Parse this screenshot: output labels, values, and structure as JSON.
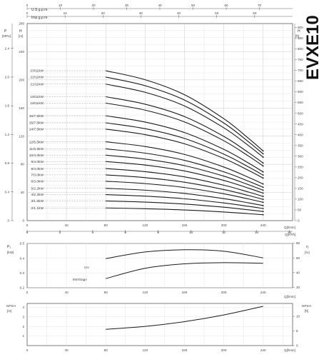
{
  "model": "EVXE10",
  "main_chart": {
    "top_axes": {
      "us_gpm": {
        "label": "U.S.g.p.m.",
        "ticks": [
          "0",
          "10",
          "20",
          "30",
          "40",
          "50",
          "60",
          "70"
        ],
        "max": 70
      },
      "imp_gpm": {
        "label": "Imp.g.p.m.",
        "ticks": [
          "0",
          "10",
          "20",
          "30",
          "40",
          "50",
          "60"
        ],
        "max": 60
      }
    },
    "left_axes": {
      "p_label": "P",
      "p_unit": "[MPa]",
      "p_ticks": [
        "0",
        "0.4",
        "0.8",
        "1.2",
        "1.6",
        "2.0",
        "2.4"
      ],
      "h_label": "H",
      "h_unit": "[m]",
      "h_ticks": [
        "0",
        "40",
        "80",
        "120",
        "160",
        "200",
        "240",
        "280"
      ]
    },
    "right_axis": {
      "label": "H",
      "unit": "[ft]",
      "ticks": [
        "0",
        "50",
        "100",
        "150",
        "200",
        "250",
        "300",
        "350",
        "400",
        "450",
        "500",
        "550",
        "600",
        "650",
        "700",
        "750",
        "800",
        "850",
        "900"
      ],
      "max": 900
    },
    "bottom_axes": {
      "q_lmin": {
        "label": "Q[l/min]",
        "ticks": [
          "0",
          "40",
          "80",
          "120",
          "160",
          "200",
          "240"
        ]
      },
      "q_m3h": {
        "label": "Q[m³/h]",
        "ticks": [
          "0",
          "2",
          "4",
          "6",
          "8",
          "10",
          "12",
          "14",
          "16"
        ]
      }
    }
  },
  "efficiency_chart": {
    "left_label": "P₂",
    "left_unit": "[kW]",
    "left_ticks": [
      "0.2",
      "0.3",
      "0.4",
      "0.5"
    ],
    "right_label": "η",
    "right_unit": "[%]",
    "right_ticks": [
      "20",
      "40",
      "60",
      "80"
    ],
    "bottom_ticks": [
      "0",
      "40",
      "80",
      "120",
      "160",
      "200",
      "240"
    ],
    "bottom_label": "Q[l/min]",
    "curve_labels": {
      "eta": "η%",
      "power": "kW/Stage"
    }
  },
  "npsh_chart": {
    "left_label": "NPSH",
    "left_unit": "[m]",
    "left_ticks": [
      "1",
      "2",
      "3",
      "4"
    ],
    "right_label": "NPSH",
    "right_unit": "[ft]",
    "right_ticks": [
      "0",
      "5",
      "10"
    ],
    "bottom_ticks": [
      "0",
      "40",
      "80",
      "120",
      "160",
      "200",
      "240"
    ],
    "bottom_label": "Q[l/min]"
  },
  "chart_data": [
    {
      "type": "line",
      "title": "EVXE10",
      "xlabel": "Q[l/min]",
      "ylabel": "H [m]",
      "xlim": [
        0,
        270
      ],
      "ylim": [
        0,
        280
      ],
      "x": [
        80,
        120,
        160,
        200,
        225,
        240
      ],
      "shape_relative_to_shutoff": [
        1.0,
        0.94,
        0.84,
        0.68,
        0.55,
        0.465
      ],
      "series": [
        {
          "name": "23/11kW",
          "head_at_80": 213
        },
        {
          "name": "22/11kW",
          "head_at_80": 204
        },
        {
          "name": "21/11kW",
          "head_at_80": 194
        },
        {
          "name": "19/11kW",
          "head_at_80": 176
        },
        {
          "name": "18/11kW",
          "head_at_80": 167
        },
        {
          "name": "16/7.5kW",
          "head_at_80": 149
        },
        {
          "name": "15/7.5kW",
          "head_at_80": 139
        },
        {
          "name": "14/7.5kW",
          "head_at_80": 130
        },
        {
          "name": "12/5.5kW",
          "head_at_80": 112
        },
        {
          "name": "11/5.5kW",
          "head_at_80": 102
        },
        {
          "name": "10/4.0kW",
          "head_at_80": 93
        },
        {
          "name": "9/4.0kW",
          "head_at_80": 84
        },
        {
          "name": "8/4.0kW",
          "head_at_80": 74
        },
        {
          "name": "7/3.0kW",
          "head_at_80": 65
        },
        {
          "name": "6/3.0kW",
          "head_at_80": 56
        },
        {
          "name": "5/2.2kW",
          "head_at_80": 46
        },
        {
          "name": "4/2.2kW",
          "head_at_80": 37
        },
        {
          "name": "3/1.5kW",
          "head_at_80": 28
        },
        {
          "name": "2/1.1kW",
          "head_at_80": 18
        }
      ]
    },
    {
      "type": "line",
      "xlabel": "Q[l/min]",
      "xlim": [
        0,
        270
      ],
      "series": [
        {
          "name": "η%",
          "axis": "right",
          "unit": "%",
          "x": [
            80,
            120,
            160,
            200,
            240
          ],
          "y": [
            59,
            68,
            71,
            69,
            60
          ]
        },
        {
          "name": "kW/Stage",
          "axis": "left",
          "unit": "kW",
          "x": [
            80,
            120,
            160,
            200,
            240
          ],
          "y": [
            0.262,
            0.332,
            0.362,
            0.37,
            0.366
          ]
        }
      ]
    },
    {
      "type": "line",
      "xlabel": "Q[l/min]",
      "ylabel": "NPSH [m]",
      "xlim": [
        0,
        270
      ],
      "series": [
        {
          "name": "NPSH",
          "x": [
            80,
            120,
            160,
            200,
            240
          ],
          "y": [
            1.7,
            2.0,
            2.5,
            3.2,
            4.1
          ]
        }
      ]
    }
  ]
}
